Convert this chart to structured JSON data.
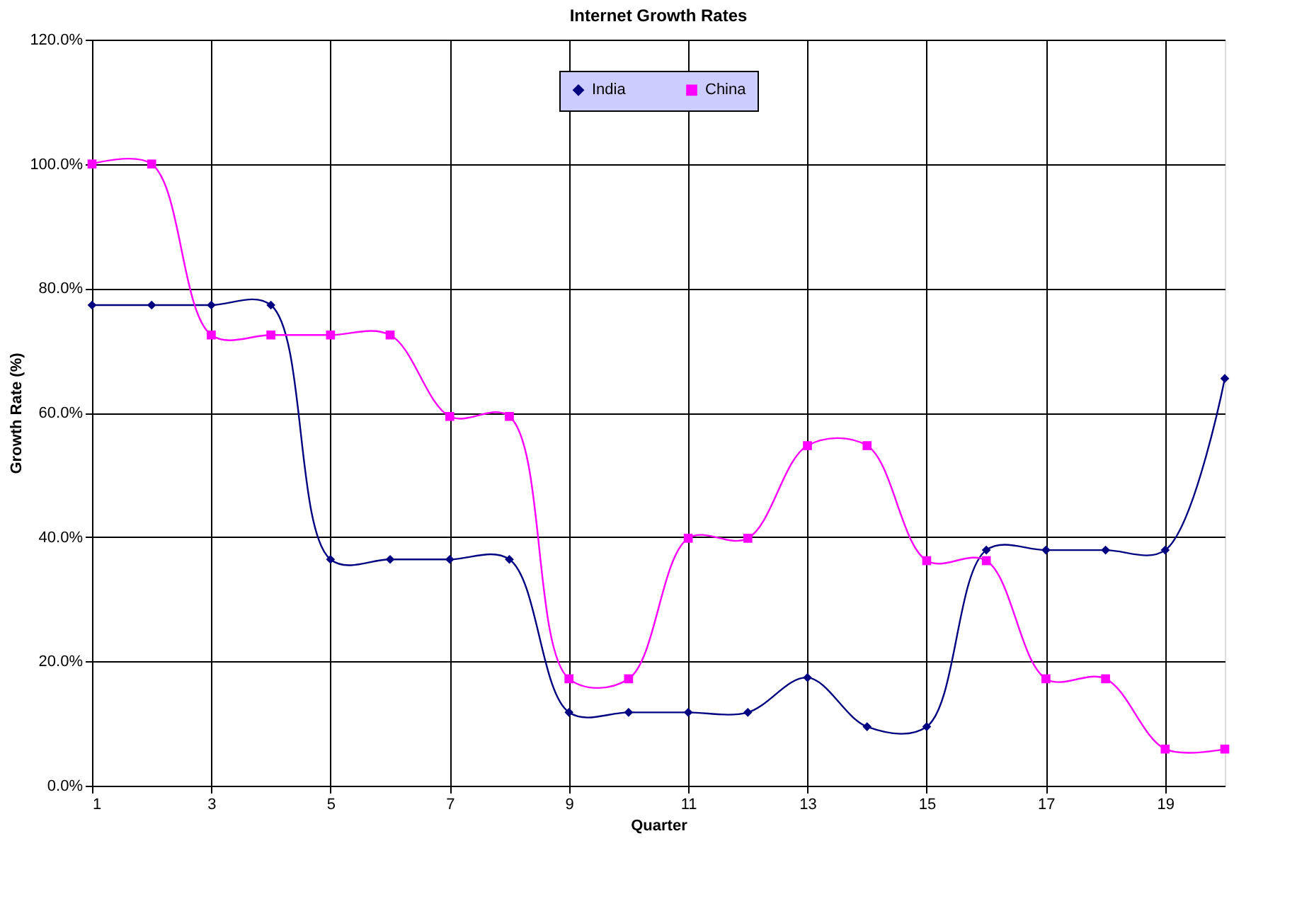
{
  "chart_data": {
    "type": "line",
    "title": "Internet Growth Rates",
    "xlabel": "Quarter",
    "ylabel": "Growth Rate (%)",
    "x": [
      1,
      2,
      3,
      4,
      5,
      6,
      7,
      8,
      9,
      10,
      11,
      12,
      13,
      14,
      15,
      16,
      17,
      18,
      19,
      20
    ],
    "series": [
      {
        "name": "India",
        "color": "#000080",
        "marker": "diamond",
        "values": [
          77.3,
          77.3,
          77.3,
          77.3,
          36.4,
          36.4,
          36.4,
          36.4,
          11.8,
          11.8,
          11.8,
          11.8,
          17.4,
          9.5,
          9.5,
          37.9,
          37.9,
          37.9,
          37.9,
          65.5
        ]
      },
      {
        "name": "China",
        "color": "#ff00ff",
        "marker": "square",
        "values": [
          100,
          100,
          72.5,
          72.5,
          72.5,
          72.5,
          59.4,
          59.4,
          17.2,
          17.2,
          39.8,
          39.8,
          54.7,
          54.7,
          36.2,
          36.2,
          17.2,
          17.2,
          5.9,
          5.9
        ]
      }
    ],
    "xlim": [
      1,
      20
    ],
    "xticks": [
      1,
      3,
      5,
      7,
      9,
      11,
      13,
      15,
      17,
      19
    ],
    "ylim": [
      0,
      120
    ],
    "yticks": [
      {
        "value": 0,
        "label": "0.0%"
      },
      {
        "value": 20,
        "label": "20.0%"
      },
      {
        "value": 40,
        "label": "40.0%"
      },
      {
        "value": 60,
        "label": "60.0%"
      },
      {
        "value": 80,
        "label": "80.0%"
      },
      {
        "value": 100,
        "label": "100.0%"
      },
      {
        "value": 120,
        "label": "120.0%"
      }
    ],
    "grid": true,
    "legend": "top",
    "line_style": "solid"
  }
}
